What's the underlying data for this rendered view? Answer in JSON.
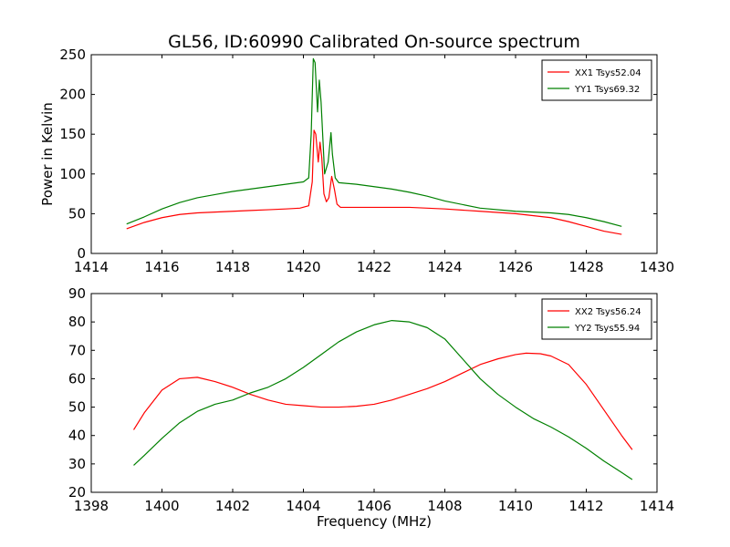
{
  "figure_title": "GL56, ID:60990 Calibrated On-source spectrum",
  "chart_data": [
    {
      "type": "line",
      "title": "GL56, ID:60990 Calibrated On-source spectrum",
      "xlabel": "",
      "ylabel": "Power in Kelvin",
      "xlim": [
        1414,
        1430
      ],
      "ylim": [
        0,
        250
      ],
      "xticks": [
        1414,
        1416,
        1418,
        1420,
        1422,
        1424,
        1426,
        1428,
        1430
      ],
      "yticks": [
        0,
        50,
        100,
        150,
        200,
        250
      ],
      "grid": false,
      "legend_position": "top-right",
      "series": [
        {
          "name": "XX1 Tsys52.04",
          "color": "#ff0000",
          "x": [
            1415.0,
            1415.5,
            1416.0,
            1416.5,
            1417.0,
            1417.5,
            1418.0,
            1418.5,
            1419.0,
            1419.5,
            1419.9,
            1420.15,
            1420.25,
            1420.3,
            1420.35,
            1420.42,
            1420.47,
            1420.52,
            1420.58,
            1420.65,
            1420.72,
            1420.8,
            1420.88,
            1420.95,
            1421.05,
            1421.3,
            1422.0,
            1423.0,
            1424.0,
            1425.0,
            1426.0,
            1427.0,
            1427.5,
            1428.0,
            1428.5,
            1429.0
          ],
          "y": [
            31,
            39,
            45,
            49,
            51,
            52,
            53,
            54,
            55,
            56,
            57,
            60,
            90,
            155,
            150,
            115,
            140,
            120,
            75,
            65,
            70,
            97,
            80,
            62,
            58,
            58,
            58,
            58,
            56,
            53,
            50,
            45,
            40,
            34,
            28,
            24
          ]
        },
        {
          "name": "YY1 Tsys69.32",
          "color": "#008000",
          "x": [
            1415.0,
            1415.5,
            1416.0,
            1416.5,
            1417.0,
            1417.5,
            1418.0,
            1418.5,
            1419.0,
            1419.5,
            1420.0,
            1420.15,
            1420.22,
            1420.28,
            1420.33,
            1420.4,
            1420.45,
            1420.5,
            1420.6,
            1420.7,
            1420.78,
            1420.82,
            1420.9,
            1421.0,
            1421.5,
            1422.0,
            1422.5,
            1423.0,
            1423.5,
            1424.0,
            1425.0,
            1426.0,
            1427.0,
            1427.5,
            1428.0,
            1428.5,
            1429.0
          ],
          "y": [
            37,
            46,
            56,
            64,
            70,
            74,
            78,
            81,
            84,
            87,
            90,
            95,
            150,
            245,
            240,
            178,
            218,
            190,
            100,
            115,
            152,
            125,
            95,
            89,
            87,
            84,
            81,
            77,
            72,
            66,
            57,
            53,
            51,
            49,
            45,
            40,
            34
          ]
        }
      ]
    },
    {
      "type": "line",
      "title": "",
      "xlabel": "Frequency (MHz)",
      "ylabel": "",
      "xlim": [
        1398,
        1414
      ],
      "ylim": [
        20,
        90
      ],
      "xticks": [
        1398,
        1400,
        1402,
        1404,
        1406,
        1408,
        1410,
        1412,
        1414
      ],
      "yticks": [
        20,
        30,
        40,
        50,
        60,
        70,
        80,
        90
      ],
      "grid": false,
      "legend_position": "top-right",
      "series": [
        {
          "name": "XX2 Tsys56.24",
          "color": "#ff0000",
          "x": [
            1399.2,
            1399.5,
            1400.0,
            1400.5,
            1401.0,
            1401.5,
            1402.0,
            1402.5,
            1403.0,
            1403.5,
            1404.0,
            1404.5,
            1405.0,
            1405.5,
            1406.0,
            1406.5,
            1407.0,
            1407.5,
            1408.0,
            1408.5,
            1409.0,
            1409.5,
            1410.0,
            1410.3,
            1410.7,
            1411.0,
            1411.5,
            1412.0,
            1412.5,
            1413.0,
            1413.3
          ],
          "y": [
            42,
            48,
            56,
            60,
            60.5,
            59,
            57,
            54.5,
            52.5,
            51,
            50.5,
            50,
            50,
            50.3,
            51,
            52.5,
            54.5,
            56.5,
            59,
            62,
            65,
            67,
            68.5,
            69,
            68.8,
            68,
            65,
            58,
            49,
            40,
            35
          ]
        },
        {
          "name": "YY2 Tsys55.94",
          "color": "#008000",
          "x": [
            1399.2,
            1399.5,
            1400.0,
            1400.5,
            1401.0,
            1401.5,
            1402.0,
            1402.5,
            1403.0,
            1403.5,
            1404.0,
            1404.5,
            1405.0,
            1405.5,
            1406.0,
            1406.5,
            1407.0,
            1407.5,
            1408.0,
            1408.5,
            1409.0,
            1409.5,
            1410.0,
            1410.5,
            1411.0,
            1411.5,
            1412.0,
            1412.5,
            1413.0,
            1413.3
          ],
          "y": [
            29.5,
            33,
            39,
            44.5,
            48.5,
            51,
            52.5,
            55,
            57,
            60,
            64,
            68.5,
            73,
            76.5,
            79,
            80.5,
            80,
            78,
            74,
            67,
            60,
            54.5,
            50,
            46,
            43,
            39.5,
            35.5,
            31,
            27,
            24.5
          ]
        }
      ]
    }
  ]
}
